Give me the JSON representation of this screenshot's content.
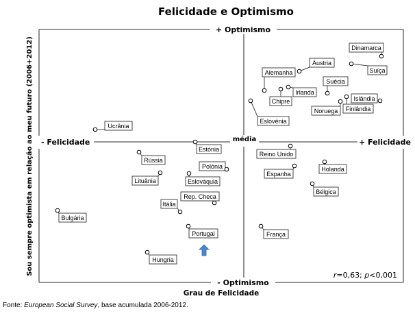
{
  "chart_data": {
    "type": "scatter",
    "title": "Felicidade e Optimismo",
    "xlabel": "Grau de Felicidade",
    "ylabel": "Sou sempre optimista em relação ao meu futuro (2006+2012)",
    "x_pos_label": "+ Felicidade",
    "x_neg_label": "- Felicidade",
    "y_pos_label": "+ Optimismo",
    "y_neg_label": "- Optimismo",
    "mean_label": "média",
    "annotation_r": "r",
    "annotation_r_val": "=0,63; ",
    "annotation_p": "p",
    "annotation_p_val": "<0,001",
    "xlim": [
      -2.99,
      2.33
    ],
    "ylim": [
      -2.05,
      1.64
    ],
    "grid": false,
    "marker_color": "#000000",
    "highlight": {
      "country": "Portugal",
      "icon": "up-arrow",
      "color": "#4a86c8"
    },
    "points": [
      {
        "name": "Dinamarca",
        "x": 2.01,
        "y": 1.25
      },
      {
        "name": "Suíça",
        "x": 1.57,
        "y": 1.14
      },
      {
        "name": "Áustria",
        "x": 0.81,
        "y": 1.03
      },
      {
        "name": "Alemanha",
        "x": 0.3,
        "y": 0.75
      },
      {
        "name": "Irlanda",
        "x": 0.65,
        "y": 0.8
      },
      {
        "name": "Chipre",
        "x": 0.54,
        "y": 0.77
      },
      {
        "name": "Suécia",
        "x": 1.22,
        "y": 0.71
      },
      {
        "name": "Eslovénia",
        "x": 0.1,
        "y": 0.6
      },
      {
        "name": "Noruega",
        "x": 1.41,
        "y": 0.59
      },
      {
        "name": "Finlândia",
        "x": 1.5,
        "y": 0.66
      },
      {
        "name": "Islândia",
        "x": 1.99,
        "y": 0.6
      },
      {
        "name": "Ucrânia",
        "x": -2.17,
        "y": 0.18
      },
      {
        "name": "Estónia",
        "x": -0.71,
        "y": 0.0
      },
      {
        "name": "Rússia",
        "x": -1.53,
        "y": -0.15
      },
      {
        "name": "Polónia",
        "x": -0.25,
        "y": -0.4
      },
      {
        "name": "Lituânia",
        "x": -1.22,
        "y": -0.45
      },
      {
        "name": "Eslováquia",
        "x": -0.8,
        "y": -0.46
      },
      {
        "name": "Rep. Checa",
        "x": -0.43,
        "y": -0.89
      },
      {
        "name": "Itália",
        "x": -0.93,
        "y": -1.02
      },
      {
        "name": "Bulgária",
        "x": -2.72,
        "y": -1.0
      },
      {
        "name": "Portugal",
        "x": -0.81,
        "y": -1.23
      },
      {
        "name": "Hungria",
        "x": -1.41,
        "y": -1.61
      },
      {
        "name": "Reino Unido",
        "x": 0.68,
        "y": -0.06
      },
      {
        "name": "Espanha",
        "x": 0.74,
        "y": -0.35
      },
      {
        "name": "Holanda",
        "x": 1.18,
        "y": -0.29
      },
      {
        "name": "Bélgica",
        "x": 1.0,
        "y": -0.61
      },
      {
        "name": "França",
        "x": 0.25,
        "y": -1.23
      }
    ]
  },
  "footer": {
    "prefix": "Fonte: ",
    "source": "European Social Survey",
    "suffix": ", base acumulada 2006-2012."
  }
}
